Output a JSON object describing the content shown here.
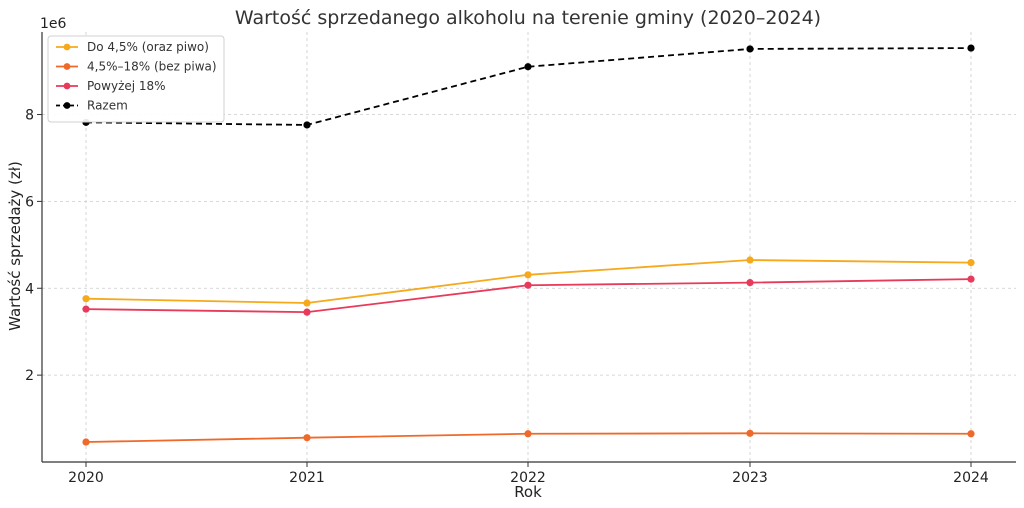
{
  "chart_data": {
    "type": "line",
    "title": "Wartość sprzedanego alkoholu na terenie gminy (2020–2024)",
    "xlabel": "Rok",
    "ylabel": "Wartość sprzedaży (zł)",
    "y_multiplier_label": "1e6",
    "categories": [
      "2020",
      "2021",
      "2022",
      "2023",
      "2024"
    ],
    "ylim": [
      0.0,
      9.9
    ],
    "y_ticks": [
      2,
      4,
      6,
      8
    ],
    "grid": true,
    "legend_position": "top-left",
    "series": [
      {
        "name": "Do 4,5% (oraz piwo)",
        "color": "#f6a91b",
        "dashed": false,
        "values": [
          3.76,
          3.66,
          4.31,
          4.65,
          4.59
        ]
      },
      {
        "name": "4,5%–18% (bez piwa)",
        "color": "#ef6a2a",
        "dashed": false,
        "values": [
          0.46,
          0.56,
          0.65,
          0.66,
          0.65
        ]
      },
      {
        "name": "Powyżej 18%",
        "color": "#e83a5a",
        "dashed": false,
        "values": [
          3.52,
          3.45,
          4.07,
          4.13,
          4.21
        ]
      },
      {
        "name": "Razem",
        "color": "#000000",
        "dashed": true,
        "values": [
          7.82,
          7.76,
          9.1,
          9.51,
          9.53
        ]
      }
    ]
  }
}
